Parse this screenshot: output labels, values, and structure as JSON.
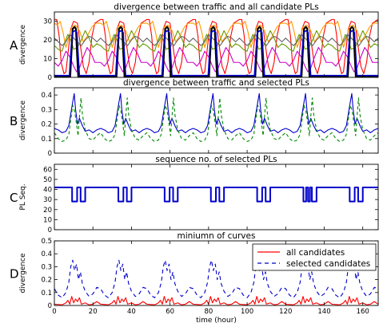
{
  "chart_data": [
    {
      "type": "line",
      "panel_label": "A",
      "title": "divergence between traffic and all candidate PLs",
      "ylabel": "divergence",
      "xlim": [
        0,
        168
      ],
      "ylim": [
        0,
        35
      ],
      "yticks": [
        0,
        10,
        20,
        30
      ],
      "show_x_tick_labels": false,
      "period": 24,
      "series": [
        {
          "color": "#ff0000",
          "pattern": [
            [
              0,
              31
            ],
            [
              1.2,
              31
            ],
            [
              2.5,
              22
            ],
            [
              3.5,
              8
            ],
            [
              5,
              2
            ],
            [
              6,
              3
            ],
            [
              7.2,
              14
            ],
            [
              8.5,
              26
            ],
            [
              10,
              30
            ],
            [
              12,
              29
            ],
            [
              13.5,
              17
            ],
            [
              15,
              6
            ],
            [
              16.5,
              2
            ],
            [
              18,
              8
            ],
            [
              19.5,
              22
            ],
            [
              21,
              29
            ],
            [
              24,
              31
            ]
          ]
        },
        {
          "color": "#cc00cc",
          "pattern": [
            [
              0,
              8
            ],
            [
              2,
              6
            ],
            [
              4,
              9
            ],
            [
              6,
              14
            ],
            [
              8,
              11
            ],
            [
              10,
              6
            ],
            [
              11.5,
              3
            ],
            [
              13,
              5
            ],
            [
              15,
              11
            ],
            [
              17,
              16
            ],
            [
              19,
              13
            ],
            [
              21,
              8
            ],
            [
              24,
              8
            ]
          ]
        },
        {
          "color": "#ff9900",
          "pattern": [
            [
              0,
              29
            ],
            [
              1.5,
              28
            ],
            [
              3,
              30
            ],
            [
              4.5,
              24
            ],
            [
              6,
              16
            ],
            [
              7.5,
              21
            ],
            [
              9,
              27
            ],
            [
              11,
              28
            ],
            [
              13,
              25
            ],
            [
              15,
              19
            ],
            [
              17,
              22
            ],
            [
              19.5,
              27
            ],
            [
              21.5,
              29
            ],
            [
              24,
              29
            ]
          ]
        },
        {
          "color": "#669900",
          "pattern": [
            [
              0,
              17
            ],
            [
              2,
              15
            ],
            [
              4,
              14
            ],
            [
              5.5,
              19
            ],
            [
              7,
              23
            ],
            [
              8.5,
              20
            ],
            [
              10,
              15
            ],
            [
              12,
              16
            ],
            [
              14,
              20
            ],
            [
              16,
              25
            ],
            [
              18,
              21
            ],
            [
              20,
              16
            ],
            [
              22,
              18
            ],
            [
              24,
              17
            ]
          ]
        },
        {
          "color": "#666666",
          "pattern": [
            [
              0,
              21
            ],
            [
              2,
              19
            ],
            [
              4,
              17
            ],
            [
              6,
              19
            ],
            [
              8,
              23
            ],
            [
              10,
              21
            ],
            [
              12,
              19
            ],
            [
              14,
              17
            ],
            [
              16,
              20
            ],
            [
              18,
              22
            ],
            [
              20,
              21
            ],
            [
              22,
              19
            ],
            [
              24,
              21
            ]
          ]
        },
        {
          "color": "#000000",
          "width": 2.2,
          "pattern": [
            [
              0,
              0.3
            ],
            [
              8.2,
              0.3
            ],
            [
              8.8,
              12
            ],
            [
              9.5,
              26
            ],
            [
              10.5,
              27
            ],
            [
              11.2,
              26
            ],
            [
              11.8,
              12
            ],
            [
              12.4,
              0.3
            ],
            [
              24,
              0.3
            ]
          ]
        },
        {
          "color": "#0000cc",
          "width": 1.6,
          "pattern": [
            [
              0,
              1
            ],
            [
              7.8,
              1
            ],
            [
              8.5,
              13
            ],
            [
              9.3,
              24
            ],
            [
              10.5,
              25
            ],
            [
              11.7,
              24
            ],
            [
              12.3,
              13
            ],
            [
              13,
              1
            ],
            [
              24,
              1
            ]
          ]
        }
      ]
    },
    {
      "type": "line",
      "panel_label": "B",
      "title": "divergence between traffic and selected PLs",
      "ylabel": "divergence",
      "xlim": [
        0,
        168
      ],
      "ylim": [
        0,
        0.45
      ],
      "yticks": [
        0,
        0.1,
        0.2,
        0.3,
        0.4
      ],
      "show_x_tick_labels": false,
      "period": 24,
      "series": [
        {
          "color": "#0000cc",
          "pattern": [
            [
              0,
              0.17
            ],
            [
              2,
              0.16
            ],
            [
              4,
              0.14
            ],
            [
              6,
              0.15
            ],
            [
              7.5,
              0.19
            ],
            [
              8.5,
              0.27
            ],
            [
              9.5,
              0.35
            ],
            [
              10.3,
              0.41
            ],
            [
              11,
              0.3
            ],
            [
              12,
              0.2
            ],
            [
              13,
              0.24
            ],
            [
              14.5,
              0.19
            ],
            [
              16,
              0.15
            ],
            [
              18,
              0.16
            ],
            [
              20,
              0.14
            ],
            [
              22,
              0.16
            ],
            [
              24,
              0.17
            ]
          ]
        },
        {
          "color": "#008800",
          "dash": "4,3",
          "pattern": [
            [
              0,
              0.14
            ],
            [
              2,
              0.1
            ],
            [
              4,
              0.08
            ],
            [
              6,
              0.09
            ],
            [
              7.5,
              0.13
            ],
            [
              8.5,
              0.23
            ],
            [
              9.5,
              0.33
            ],
            [
              10.5,
              0.29
            ],
            [
              11.5,
              0.2
            ],
            [
              12.3,
              0.12
            ],
            [
              13,
              0.25
            ],
            [
              13.8,
              0.38
            ],
            [
              14.6,
              0.26
            ],
            [
              16,
              0.16
            ],
            [
              18,
              0.1
            ],
            [
              20,
              0.09
            ],
            [
              22,
              0.12
            ],
            [
              24,
              0.14
            ]
          ]
        }
      ]
    },
    {
      "type": "line",
      "panel_label": "C",
      "title": "sequence no. of selected PLs",
      "ylabel": "PL Seq.",
      "xlim": [
        0,
        168
      ],
      "ylim": [
        0,
        65
      ],
      "yticks": [
        0,
        10,
        20,
        30,
        40,
        50,
        60
      ],
      "show_x_tick_labels": false,
      "series": [
        {
          "color": "#0000cc",
          "width": 2,
          "step": true,
          "points": [
            [
              0,
              42
            ],
            [
              9.2,
              42
            ],
            [
              9.2,
              28
            ],
            [
              11.8,
              28
            ],
            [
              11.8,
              42
            ],
            [
              13.6,
              42
            ],
            [
              13.6,
              28
            ],
            [
              16,
              28
            ],
            [
              16,
              42
            ],
            [
              33.2,
              42
            ],
            [
              33.2,
              28
            ],
            [
              35.8,
              28
            ],
            [
              35.8,
              42
            ],
            [
              37.6,
              42
            ],
            [
              37.6,
              28
            ],
            [
              40,
              28
            ],
            [
              40,
              42
            ],
            [
              57.2,
              42
            ],
            [
              57.2,
              28
            ],
            [
              59.8,
              28
            ],
            [
              59.8,
              42
            ],
            [
              61.6,
              42
            ],
            [
              61.6,
              28
            ],
            [
              64,
              28
            ],
            [
              64,
              42
            ],
            [
              81.2,
              42
            ],
            [
              81.2,
              28
            ],
            [
              83.8,
              28
            ],
            [
              83.8,
              42
            ],
            [
              85.6,
              42
            ],
            [
              85.6,
              28
            ],
            [
              88,
              28
            ],
            [
              88,
              42
            ],
            [
              105.2,
              42
            ],
            [
              105.2,
              28
            ],
            [
              107.8,
              28
            ],
            [
              107.8,
              42
            ],
            [
              109.6,
              42
            ],
            [
              109.6,
              28
            ],
            [
              112,
              28
            ],
            [
              112,
              42
            ],
            [
              129.2,
              42
            ],
            [
              129.2,
              28
            ],
            [
              130.6,
              28
            ],
            [
              130.6,
              42
            ],
            [
              131.6,
              42
            ],
            [
              131.6,
              28
            ],
            [
              132.6,
              28
            ],
            [
              132.6,
              42
            ],
            [
              133.6,
              42
            ],
            [
              133.6,
              28
            ],
            [
              136,
              28
            ],
            [
              136,
              42
            ],
            [
              153.2,
              42
            ],
            [
              153.2,
              28
            ],
            [
              155.8,
              28
            ],
            [
              155.8,
              42
            ],
            [
              157.6,
              42
            ],
            [
              157.6,
              28
            ],
            [
              160,
              28
            ],
            [
              160,
              42
            ],
            [
              168,
              42
            ]
          ]
        }
      ]
    },
    {
      "type": "line",
      "panel_label": "D",
      "title": "miniumn of curves",
      "ylabel": "divergence",
      "xlabel": "time (hour)",
      "xlim": [
        0,
        168
      ],
      "ylim": [
        0,
        0.5
      ],
      "yticks": [
        0,
        0.1,
        0.2,
        0.3,
        0.4,
        0.5
      ],
      "xticks": [
        0,
        20,
        40,
        60,
        80,
        100,
        120,
        140,
        160
      ],
      "show_x_tick_labels": true,
      "legend": "top-right",
      "period": 24,
      "series": [
        {
          "name": "all candidates",
          "color": "#ff0000",
          "pattern": [
            [
              0,
              0.01
            ],
            [
              4,
              0.005
            ],
            [
              6,
              0.02
            ],
            [
              7,
              0.04
            ],
            [
              8,
              0.01
            ],
            [
              9,
              0.07
            ],
            [
              10,
              0.02
            ],
            [
              11,
              0.05
            ],
            [
              12,
              0.03
            ],
            [
              13,
              0.06
            ],
            [
              14,
              0.01
            ],
            [
              16,
              0.02
            ],
            [
              18,
              0.005
            ],
            [
              20,
              0.01
            ],
            [
              22,
              0.03
            ],
            [
              24,
              0.01
            ]
          ]
        },
        {
          "name": "selected candidates",
          "color": "#0000cc",
          "dash": "5,4",
          "pattern": [
            [
              0,
              0.13
            ],
            [
              2,
              0.08
            ],
            [
              4,
              0.06
            ],
            [
              6,
              0.1
            ],
            [
              7.5,
              0.18
            ],
            [
              8.5,
              0.3
            ],
            [
              9.5,
              0.35
            ],
            [
              10.5,
              0.27
            ],
            [
              11.5,
              0.32
            ],
            [
              12.5,
              0.2
            ],
            [
              13.5,
              0.26
            ],
            [
              14.5,
              0.17
            ],
            [
              16,
              0.11
            ],
            [
              18,
              0.07
            ],
            [
              20,
              0.09
            ],
            [
              22,
              0.14
            ],
            [
              24,
              0.13
            ]
          ]
        }
      ]
    }
  ]
}
